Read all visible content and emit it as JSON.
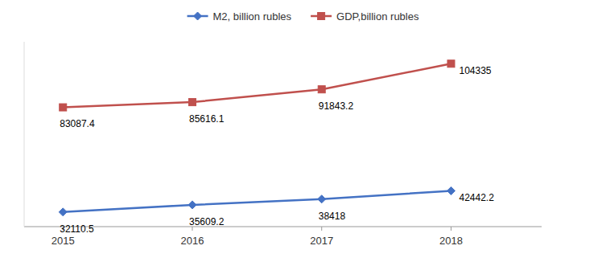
{
  "chart_data": {
    "type": "line",
    "x": [
      2015,
      2016,
      2017,
      2018
    ],
    "series": [
      {
        "name": "M2, billion rubles",
        "color": "#4472C4",
        "marker": "diamond",
        "values": [
          32110.5,
          35609.2,
          38418,
          42442.2
        ]
      },
      {
        "name": "GDP,billion rubles",
        "color": "#C0504D",
        "marker": "square",
        "values": [
          83087.4,
          85616.1,
          91843.2,
          104335
        ]
      }
    ],
    "xlim": [
      2014.7,
      2018.7
    ],
    "xticks": [
      2015,
      2016,
      2017,
      2018
    ],
    "ylim": [
      25000,
      115000
    ],
    "tick_labels": "x",
    "grid": false,
    "data_labels": true,
    "legend": "top"
  }
}
